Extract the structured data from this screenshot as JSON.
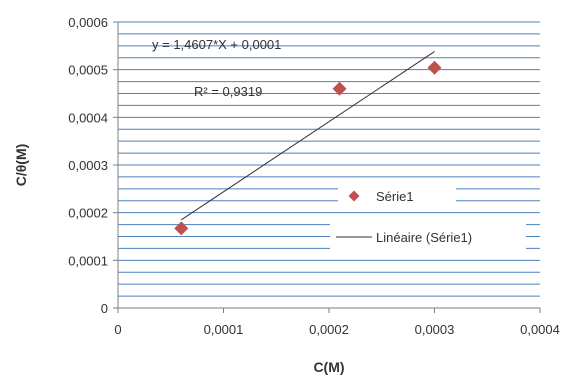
{
  "chart_data": {
    "type": "scatter",
    "xlabel": "C(M)",
    "ylabel": "C/θ(M)",
    "xlim": [
      0,
      0.0004
    ],
    "ylim": [
      0,
      0.0006
    ],
    "x_ticks": [
      "0",
      "0,0001",
      "0,0002",
      "0,0003",
      "0,0004"
    ],
    "y_ticks": [
      "0",
      "0,0001",
      "0,0002",
      "0,0003",
      "0,0004",
      "0,0005",
      "0,0006"
    ],
    "grid": true,
    "series": [
      {
        "name": "Série1",
        "type": "scatter",
        "marker": "diamond",
        "color": "#c0504d",
        "points": [
          {
            "x": 6e-05,
            "y": 0.000167
          },
          {
            "x": 0.00021,
            "y": 0.00046
          },
          {
            "x": 0.0003,
            "y": 0.000504
          }
        ]
      },
      {
        "name": "Linéaire (Série1)",
        "type": "trendline",
        "color": "#333333",
        "from": {
          "x": 6e-05,
          "y": 0.000185
        },
        "to": {
          "x": 0.0003,
          "y": 0.000538
        }
      }
    ],
    "annotations": {
      "equation": "y = 1,4607*X + 0,0001",
      "r_squared": "R² = 0,9319"
    },
    "legend": {
      "position": "right",
      "entries": [
        "Série1",
        "Linéaire (Série1)"
      ]
    },
    "colors": {
      "grid": "#4f81bd",
      "axis": "#7f7f7f",
      "marker": "#c0504d",
      "trendline": "#333333"
    }
  }
}
